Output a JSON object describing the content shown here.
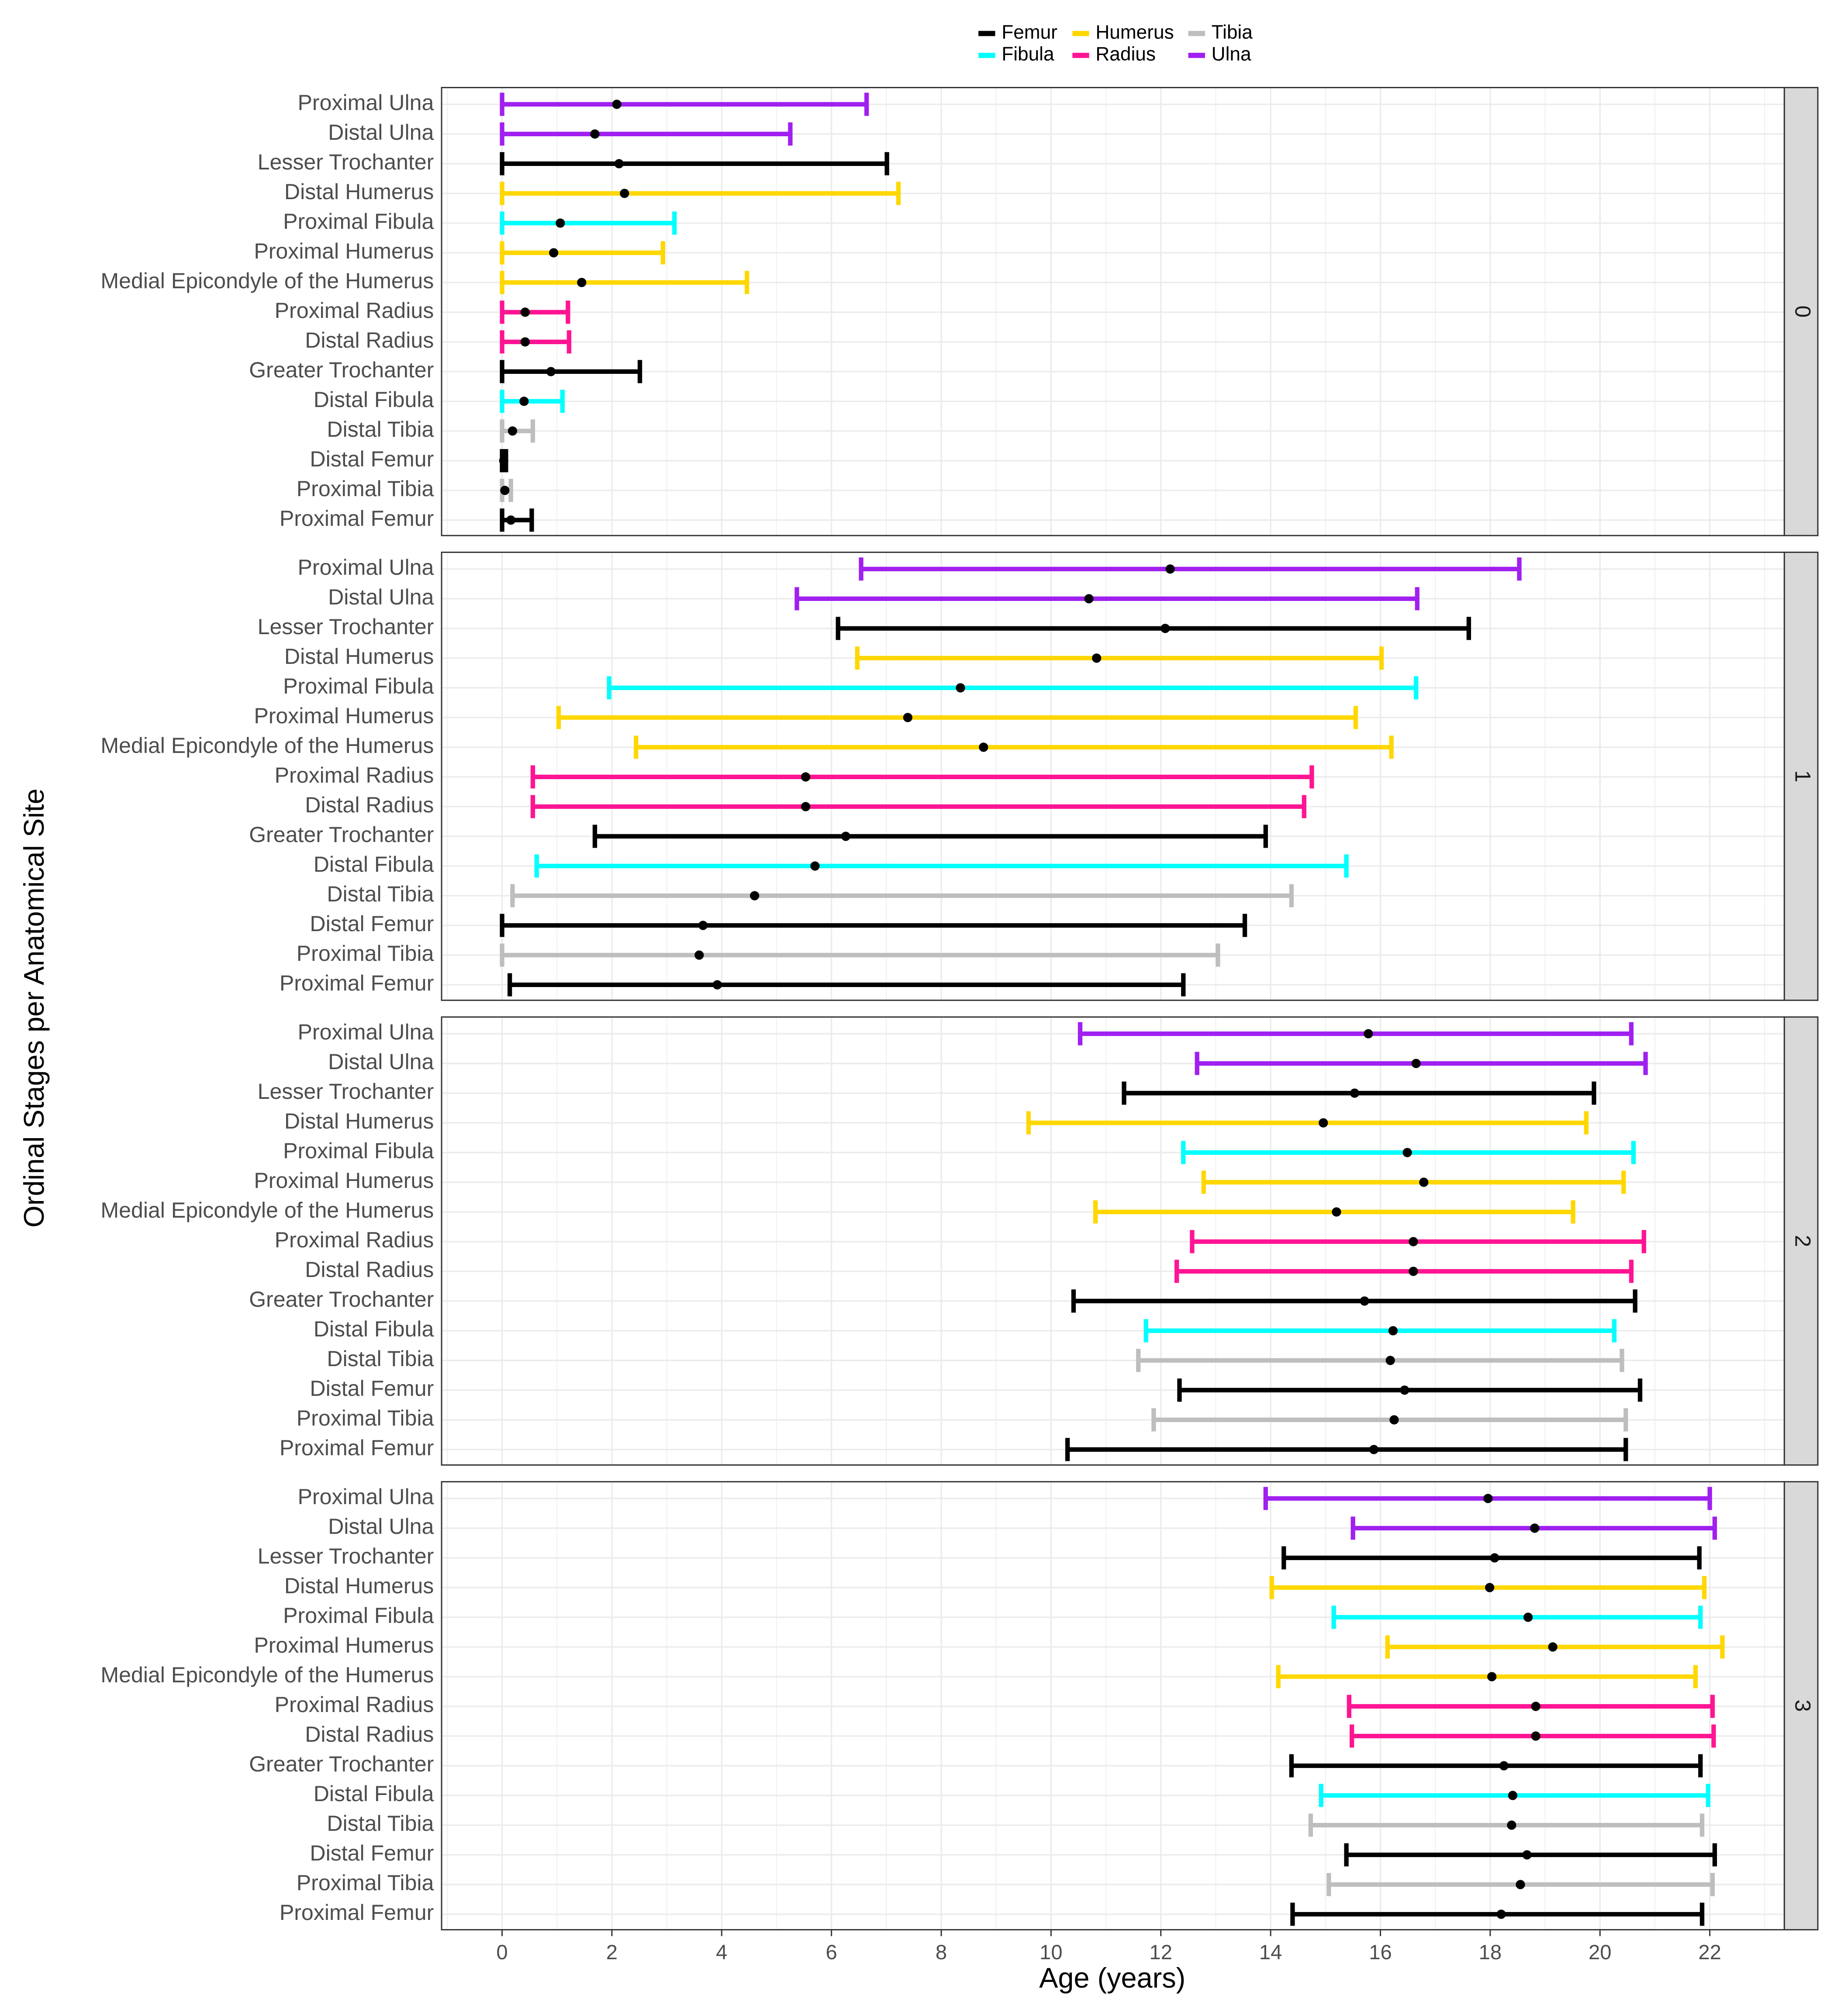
{
  "chart_data": {
    "type": "errorbar",
    "xlabel": "Age (years)",
    "ylabel": "Ordinal Stages per Anatomical Site",
    "xlim": [
      -1.1,
      23.3
    ],
    "xticks": [
      0,
      2,
      4,
      6,
      8,
      10,
      12,
      14,
      16,
      18,
      20,
      22
    ],
    "grid": true,
    "legend": {
      "placement": "top",
      "entries": [
        {
          "name": "Femur",
          "color": "#000000"
        },
        {
          "name": "Humerus",
          "color": "#FFD700"
        },
        {
          "name": "Tibia",
          "color": "#BEBEBE"
        },
        {
          "name": "Fibula",
          "color": "#00FFFF"
        },
        {
          "name": "Radius",
          "color": "#FF1493"
        },
        {
          "name": "Ulna",
          "color": "#A020F0"
        }
      ]
    },
    "sites": [
      {
        "name": "Proximal Ulna",
        "bone": "Ulna"
      },
      {
        "name": "Distal Ulna",
        "bone": "Ulna"
      },
      {
        "name": "Lesser Trochanter",
        "bone": "Femur"
      },
      {
        "name": "Distal Humerus",
        "bone": "Humerus"
      },
      {
        "name": "Proximal Fibula",
        "bone": "Fibula"
      },
      {
        "name": "Proximal Humerus",
        "bone": "Humerus"
      },
      {
        "name": "Medial Epicondyle of the Humerus",
        "bone": "Humerus"
      },
      {
        "name": "Proximal Radius",
        "bone": "Radius"
      },
      {
        "name": "Distal Radius",
        "bone": "Radius"
      },
      {
        "name": "Greater Trochanter",
        "bone": "Femur"
      },
      {
        "name": "Distal Fibula",
        "bone": "Fibula"
      },
      {
        "name": "Distal Tibia",
        "bone": "Tibia"
      },
      {
        "name": "Distal Femur",
        "bone": "Femur"
      },
      {
        "name": "Proximal Tibia",
        "bone": "Tibia"
      },
      {
        "name": "Proximal Femur",
        "bone": "Femur"
      }
    ],
    "panels": [
      {
        "stage": "0",
        "data": [
          [
            0,
            2.09,
            6.64
          ],
          [
            0,
            1.69,
            5.25
          ],
          [
            0,
            2.13,
            7.01
          ],
          [
            0,
            2.23,
            7.22
          ],
          [
            0,
            1.06,
            3.14
          ],
          [
            0,
            0.94,
            2.93
          ],
          [
            0,
            1.45,
            4.46
          ],
          [
            0,
            0.42,
            1.2
          ],
          [
            0,
            0.42,
            1.22
          ],
          [
            0,
            0.89,
            2.51
          ],
          [
            0,
            0.4,
            1.1
          ],
          [
            0,
            0.19,
            0.56
          ],
          [
            0,
            0.03,
            0.07
          ],
          [
            0,
            0.05,
            0.16
          ],
          [
            0,
            0.16,
            0.54
          ]
        ]
      },
      {
        "stage": "1",
        "data": [
          [
            6.54,
            12.17,
            18.53
          ],
          [
            5.37,
            10.69,
            16.67
          ],
          [
            6.12,
            12.08,
            17.61
          ],
          [
            6.47,
            10.83,
            16.02
          ],
          [
            1.95,
            8.35,
            16.65
          ],
          [
            1.03,
            7.39,
            15.55
          ],
          [
            2.44,
            8.77,
            16.2
          ],
          [
            0.56,
            5.53,
            14.75
          ],
          [
            0.56,
            5.53,
            14.61
          ],
          [
            1.69,
            6.26,
            13.91
          ],
          [
            0.63,
            5.7,
            15.38
          ],
          [
            0.19,
            4.6,
            14.38
          ],
          [
            0,
            3.66,
            13.53
          ],
          [
            0,
            3.59,
            13.04
          ],
          [
            0.14,
            3.92,
            12.41
          ]
        ]
      },
      {
        "stage": "2",
        "data": [
          [
            10.53,
            15.78,
            20.57
          ],
          [
            12.66,
            16.65,
            20.83
          ],
          [
            11.33,
            15.53,
            19.89
          ],
          [
            9.59,
            14.96,
            19.75
          ],
          [
            12.41,
            16.49,
            20.61
          ],
          [
            12.78,
            16.79,
            20.43
          ],
          [
            10.81,
            15.2,
            19.51
          ],
          [
            12.57,
            16.6,
            20.8
          ],
          [
            12.29,
            16.6,
            20.57
          ],
          [
            10.41,
            15.71,
            20.64
          ],
          [
            11.73,
            16.23,
            20.26
          ],
          [
            11.59,
            16.18,
            20.4
          ],
          [
            12.34,
            16.44,
            20.73
          ],
          [
            11.87,
            16.25,
            20.47
          ],
          [
            10.3,
            15.88,
            20.47
          ]
        ]
      },
      {
        "stage": "3",
        "data": [
          [
            13.91,
            17.96,
            22.0
          ],
          [
            15.5,
            18.81,
            22.09
          ],
          [
            14.24,
            18.08,
            21.81
          ],
          [
            14.02,
            17.99,
            21.9
          ],
          [
            15.15,
            18.69,
            21.83
          ],
          [
            16.13,
            19.14,
            22.23
          ],
          [
            14.14,
            18.03,
            21.74
          ],
          [
            15.43,
            18.83,
            22.05
          ],
          [
            15.48,
            18.83,
            22.07
          ],
          [
            14.38,
            18.25,
            21.83
          ],
          [
            14.92,
            18.41,
            21.97
          ],
          [
            14.73,
            18.39,
            21.86
          ],
          [
            15.38,
            18.67,
            22.09
          ],
          [
            15.06,
            18.55,
            22.05
          ],
          [
            14.4,
            18.2,
            21.86
          ]
        ]
      }
    ],
    "data_format": "[lower, mean, upper] age in years per site, sites ordered top to bottom"
  }
}
